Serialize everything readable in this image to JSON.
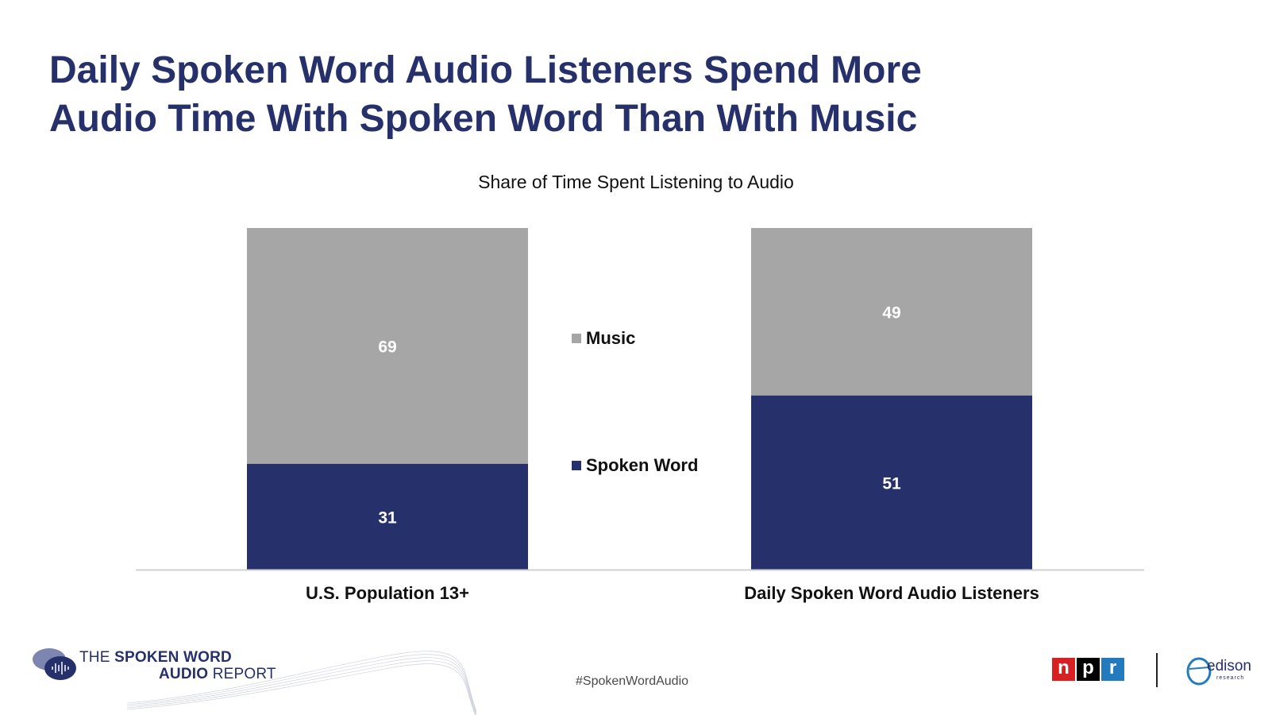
{
  "title": {
    "line1": "Daily Spoken Word Audio Listeners Spend More",
    "line2": "Audio Time With Spoken Word Than With Music"
  },
  "chart_data": {
    "type": "bar",
    "stacked": true,
    "subtitle": "Share of Time Spent Listening to Audio",
    "categories": [
      "U.S. Population 13+",
      "Daily Spoken Word Audio Listeners"
    ],
    "series": [
      {
        "name": "Spoken Word",
        "values": [
          31,
          51
        ],
        "color": "#26306a"
      },
      {
        "name": "Music",
        "values": [
          69,
          49
        ],
        "color": "#a6a6a6"
      }
    ],
    "ylim": [
      0,
      100
    ],
    "legend": [
      "Music",
      "Spoken Word"
    ],
    "legend_position": "center"
  },
  "footer": {
    "brand_line1_a": "THE ",
    "brand_line1_b": "SPOKEN WORD",
    "brand_line2_a": "AUDIO",
    "brand_line2_b": " REPORT",
    "hashtag": "#SpokenWordAudio",
    "npr_letters": [
      "n",
      "p",
      "r"
    ],
    "edison_name": "edison",
    "edison_sub": "research"
  },
  "colors": {
    "title": "#26306a",
    "spoken": "#26306a",
    "music": "#a6a6a6",
    "npr_n": "#d62021",
    "npr_p": "#000000",
    "npr_r": "#237bbd"
  }
}
